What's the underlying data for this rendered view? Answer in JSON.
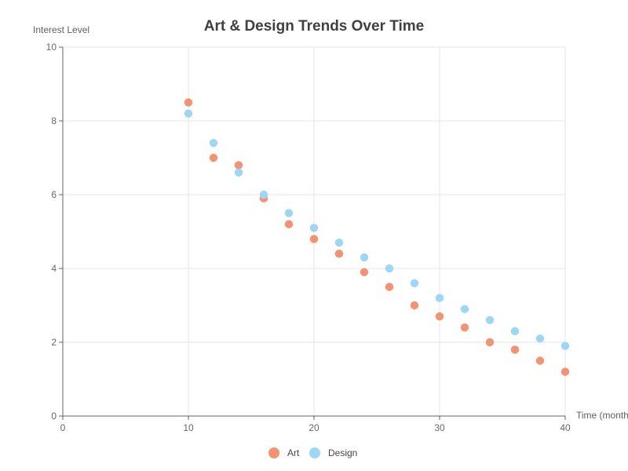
{
  "chart_data": {
    "type": "scatter",
    "title": "Art & Design Trends Over Time",
    "xlabel": "Time (months)",
    "ylabel": "Interest Level",
    "xlim": [
      0,
      40
    ],
    "ylim": [
      0,
      10
    ],
    "x_ticks": [
      0,
      10,
      20,
      30,
      40
    ],
    "y_ticks": [
      0,
      2,
      4,
      6,
      8,
      10
    ],
    "grid": true,
    "legend_position": "bottom-center",
    "series": [
      {
        "name": "Art",
        "color": "#f59271",
        "points": [
          [
            10,
            8.5
          ],
          [
            12,
            7.0
          ],
          [
            14,
            6.8
          ],
          [
            16,
            5.9
          ],
          [
            18,
            5.2
          ],
          [
            20,
            4.8
          ],
          [
            22,
            4.4
          ],
          [
            24,
            3.9
          ],
          [
            26,
            3.5
          ],
          [
            28,
            3.0
          ],
          [
            30,
            2.7
          ],
          [
            32,
            2.4
          ],
          [
            34,
            2.0
          ],
          [
            36,
            1.8
          ],
          [
            38,
            1.5
          ],
          [
            40,
            1.2
          ]
        ]
      },
      {
        "name": "Design",
        "color": "#9ed6f8",
        "points": [
          [
            10,
            8.2
          ],
          [
            12,
            7.4
          ],
          [
            14,
            6.6
          ],
          [
            16,
            6.0
          ],
          [
            18,
            5.5
          ],
          [
            20,
            5.1
          ],
          [
            22,
            4.7
          ],
          [
            24,
            4.3
          ],
          [
            26,
            4.0
          ],
          [
            28,
            3.6
          ],
          [
            30,
            3.2
          ],
          [
            32,
            2.9
          ],
          [
            34,
            2.6
          ],
          [
            36,
            2.3
          ],
          [
            38,
            2.1
          ],
          [
            40,
            1.9
          ]
        ]
      }
    ]
  }
}
